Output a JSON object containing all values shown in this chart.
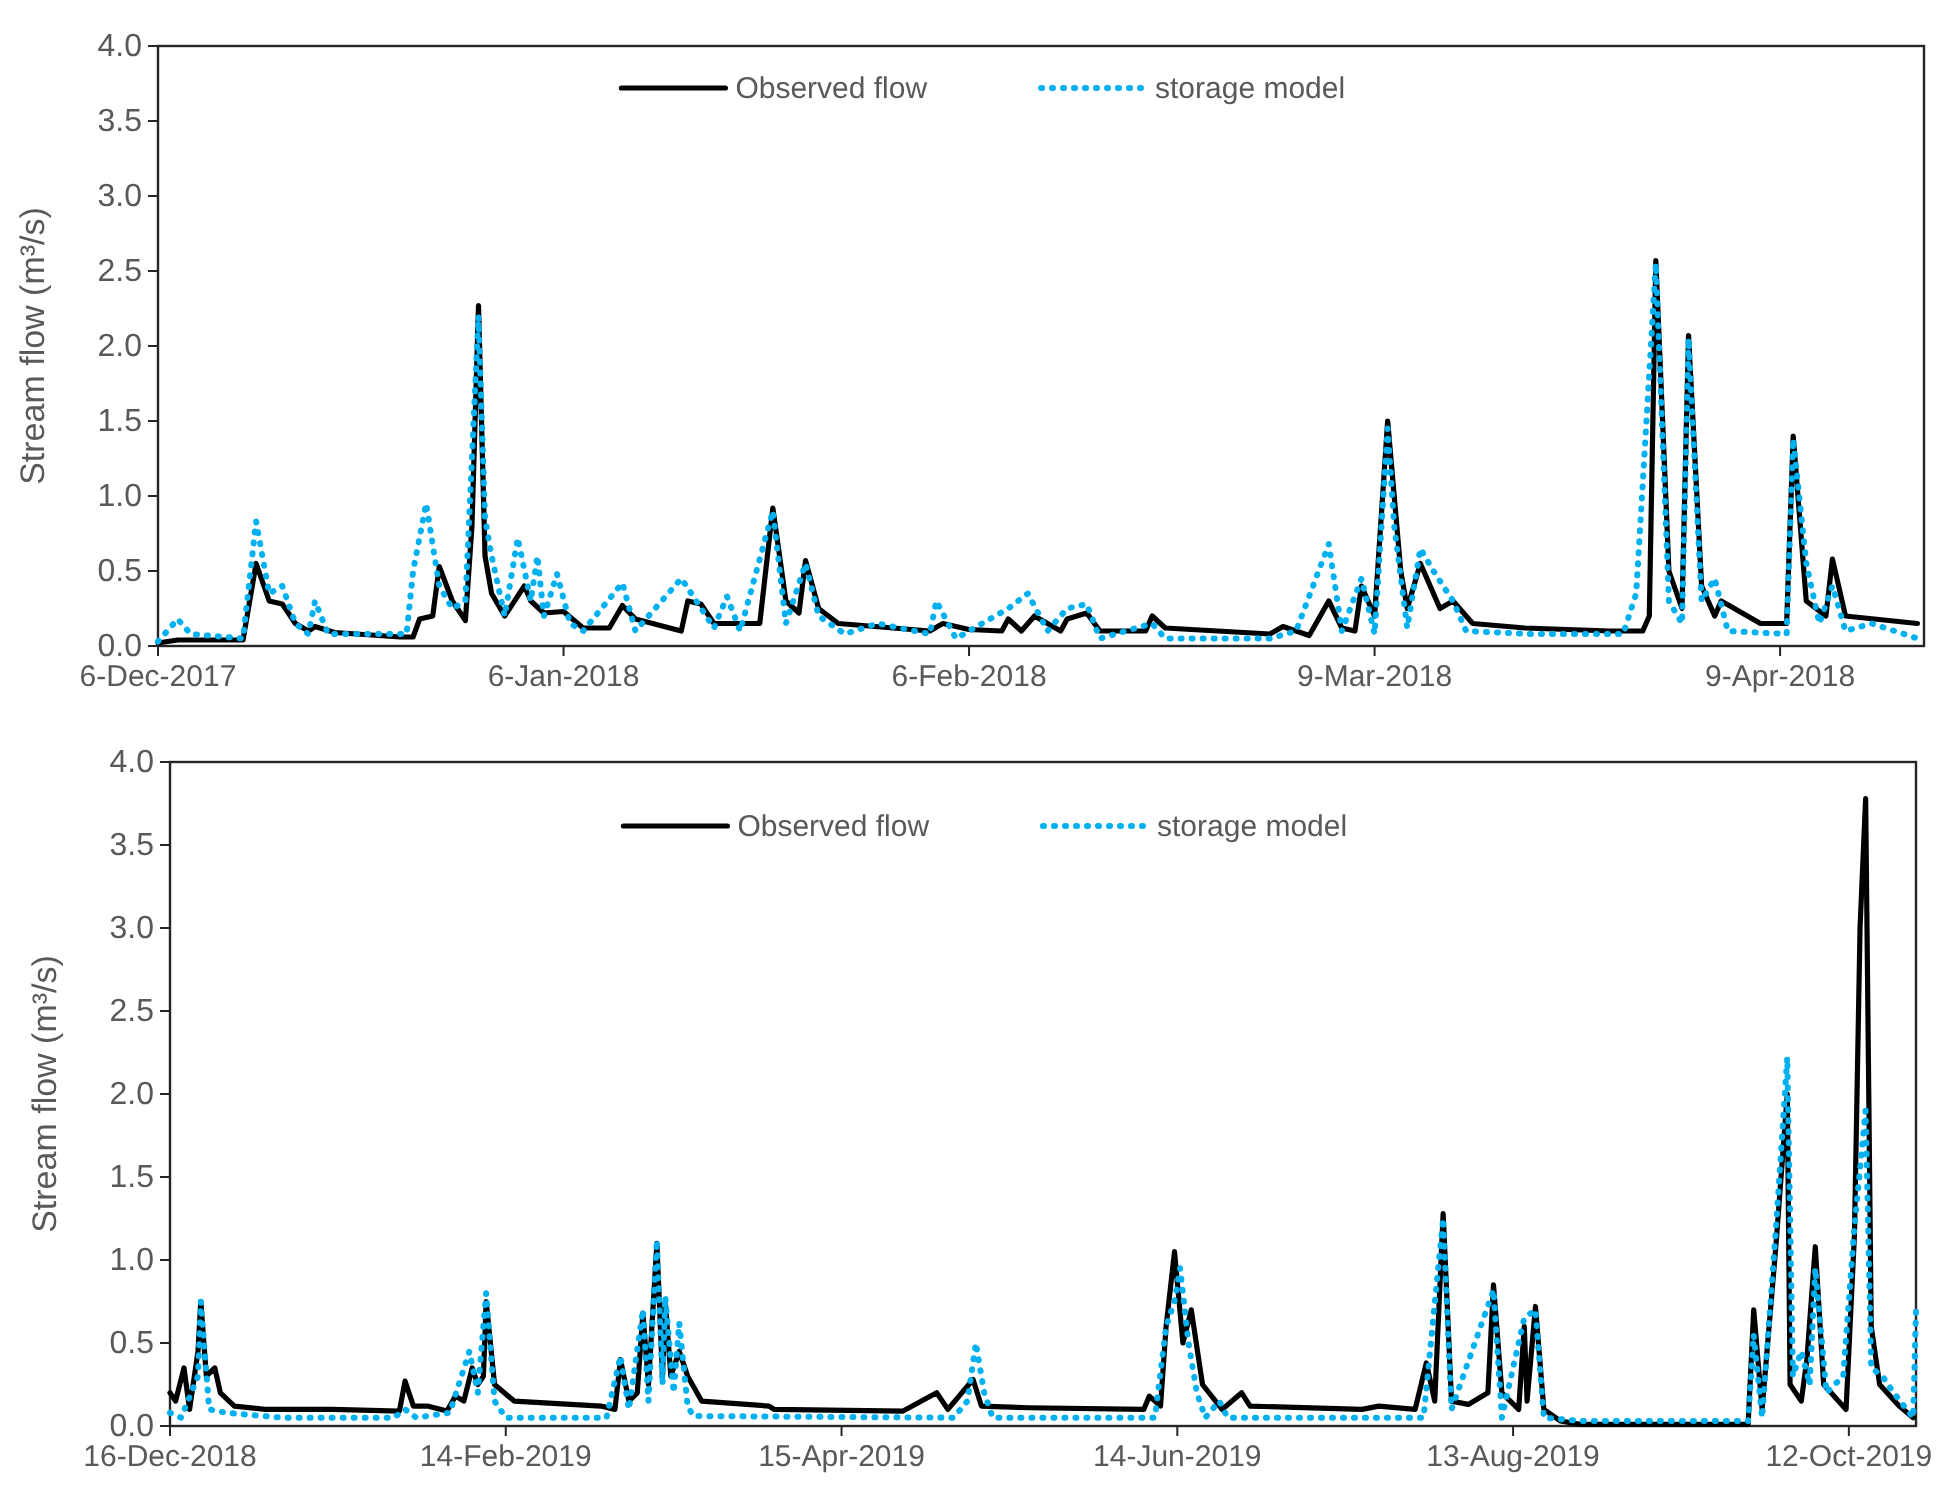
{
  "chart_data": [
    {
      "type": "line",
      "ylabel": "Stream flow (m³/s)",
      "legend": "top",
      "xlim": [
        "2017-12-06",
        "2018-04-20"
      ],
      "ylim": [
        0,
        4
      ],
      "xticks": [
        {
          "value": "2017-12-06",
          "label": "6-Dec-2017"
        },
        {
          "value": "2018-01-06",
          "label": "6-Jan-2018"
        },
        {
          "value": "2018-02-06",
          "label": "6-Feb-2018"
        },
        {
          "value": "2018-03-09",
          "label": "9-Mar-2018"
        },
        {
          "value": "2018-04-09",
          "label": "9-Apr-2018"
        }
      ],
      "yticks": [
        {
          "value": 0,
          "label": "0.0"
        },
        0.5,
        {
          "value": 1,
          "label": "1.0"
        },
        1.5,
        {
          "value": 2,
          "label": "2.0"
        },
        2.5,
        {
          "value": 3,
          "label": "3.0"
        },
        3.5,
        {
          "value": 4,
          "label": "4.0"
        }
      ],
      "series": [
        {
          "name": "Observed flow",
          "color": "#000000",
          "line_style": "solid",
          "x": [
            "2017-12-06",
            "2017-12-07T12:00",
            "2017-12-12T12:00",
            "2017-12-13T12:00",
            "2017-12-14T12:00",
            "2017-12-15T12:00",
            "2017-12-16T12:00",
            "2017-12-17T12:00",
            "2017-12-18",
            "2017-12-19T12:00",
            "2017-12-24T12:00",
            "2017-12-25T12:00",
            "2017-12-26",
            "2017-12-27",
            "2017-12-27T12:00",
            "2017-12-28T12:00",
            "2017-12-29T12:00",
            "2017-12-30",
            "2017-12-30T12:00",
            "2017-12-31",
            "2017-12-31T12:00",
            "2018-01-01T12:00",
            "2018-01-03",
            "2018-01-03T12:00",
            "2018-01-04T12:00",
            "2018-01-06",
            "2018-01-07T12:00",
            "2018-01-09T12:00",
            "2018-01-10T12:00",
            "2018-01-11T12:00",
            "2018-01-15",
            "2018-01-15T12:00",
            "2018-01-16T12:00",
            "2018-01-17T12:00",
            "2018-01-21",
            "2018-01-22",
            "2018-01-23",
            "2018-01-24",
            "2018-01-24T12:00",
            "2018-01-25T12:00",
            "2018-01-27",
            "2018-02-03",
            "2018-02-04",
            "2018-02-06",
            "2018-02-08T12:00",
            "2018-02-09",
            "2018-02-10",
            "2018-02-11",
            "2018-02-13",
            "2018-02-13T12:00",
            "2018-02-15",
            "2018-02-16",
            "2018-02-19T12:00",
            "2018-02-20",
            "2018-02-21",
            "2018-03-01",
            "2018-03-02",
            "2018-03-04",
            "2018-03-05T12:00",
            "2018-03-06T12:00",
            "2018-03-07T12:00",
            "2018-03-08",
            "2018-03-09",
            "2018-03-10",
            "2018-03-11",
            "2018-03-11T12:00",
            "2018-03-12T12:00",
            "2018-03-14",
            "2018-03-15",
            "2018-03-16T12:00",
            "2018-03-20T12:00",
            "2018-03-27",
            "2018-03-29T12:00",
            "2018-03-30",
            "2018-03-30T12:00",
            "2018-03-31T12:00",
            "2018-04-01T12:00",
            "2018-04-02",
            "2018-04-03",
            "2018-04-04",
            "2018-04-04T12:00",
            "2018-04-07T12:00",
            "2018-04-09T12:00",
            "2018-04-10",
            "2018-04-11",
            "2018-04-12T12:00",
            "2018-04-13",
            "2018-04-14",
            "2018-04-19T12:00"
          ],
          "values": [
            0.02,
            0.04,
            0.04,
            0.55,
            0.3,
            0.28,
            0.15,
            0.1,
            0.13,
            0.09,
            0.06,
            0.06,
            0.18,
            0.2,
            0.53,
            0.3,
            0.17,
            0.8,
            2.27,
            0.6,
            0.35,
            0.2,
            0.4,
            0.3,
            0.22,
            0.23,
            0.12,
            0.12,
            0.27,
            0.18,
            0.1,
            0.3,
            0.28,
            0.15,
            0.15,
            0.92,
            0.3,
            0.22,
            0.57,
            0.25,
            0.15,
            0.1,
            0.15,
            0.11,
            0.1,
            0.18,
            0.1,
            0.2,
            0.1,
            0.18,
            0.22,
            0.1,
            0.1,
            0.2,
            0.12,
            0.08,
            0.13,
            0.07,
            0.3,
            0.12,
            0.1,
            0.4,
            0.2,
            1.5,
            0.5,
            0.25,
            0.55,
            0.25,
            0.3,
            0.15,
            0.12,
            0.1,
            0.1,
            0.2,
            2.57,
            0.5,
            0.25,
            2.07,
            0.4,
            0.2,
            0.3,
            0.15,
            0.15,
            1.4,
            0.3,
            0.2,
            0.58,
            0.2,
            0.15
          ]
        },
        {
          "name": "storage model",
          "color": "#00b0f0",
          "line_style": "dotted",
          "x": [
            "2017-12-06",
            "2017-12-07T12:00",
            "2017-12-08T12:00",
            "2017-12-12T12:00",
            "2017-12-13T12:00",
            "2017-12-14T12:00",
            "2017-12-15T12:00",
            "2017-12-16T12:00",
            "2017-12-17T12:00",
            "2017-12-18",
            "2017-12-19",
            "2017-12-25",
            "2017-12-25T12:00",
            "2017-12-26T12:00",
            "2017-12-27T12:00",
            "2017-12-28T12:00",
            "2017-12-29T12:00",
            "2017-12-30T12:00",
            "2017-12-31",
            "2017-12-31T12:00",
            "2018-01-01T12:00",
            "2018-01-02T12:00",
            "2018-01-03T12:00",
            "2018-01-04",
            "2018-01-04T12:00",
            "2018-01-05T12:00",
            "2018-01-06T12:00",
            "2018-01-07T12:00",
            "2018-01-10T12:00",
            "2018-01-11T12:00",
            "2018-01-15",
            "2018-01-16",
            "2018-01-17T12:00",
            "2018-01-18T12:00",
            "2018-01-19T12:00",
            "2018-01-22",
            "2018-01-23",
            "2018-01-24T12:00",
            "2018-01-25T12:00",
            "2018-01-27T12:00",
            "2018-01-30",
            "2018-02-03",
            "2018-02-03T12:00",
            "2018-02-05",
            "2018-02-09",
            "2018-02-10T12:00",
            "2018-02-12",
            "2018-02-13T12:00",
            "2018-02-15",
            "2018-02-16",
            "2018-02-20",
            "2018-02-21",
            "2018-03-01",
            "2018-03-03",
            "2018-03-05T12:00",
            "2018-03-06T12:00",
            "2018-03-08",
            "2018-03-09",
            "2018-03-10",
            "2018-03-10T12:00",
            "2018-03-11T12:00",
            "2018-03-12T12:00",
            "2018-03-13T12:00",
            "2018-03-15",
            "2018-03-16",
            "2018-03-21",
            "2018-03-28",
            "2018-03-29",
            "2018-03-30T12:00",
            "2018-03-31T12:00",
            "2018-04-01T12:00",
            "2018-04-02",
            "2018-04-03",
            "2018-04-04",
            "2018-04-05",
            "2018-04-09T12:00",
            "2018-04-10",
            "2018-04-11",
            "2018-04-12",
            "2018-04-13",
            "2018-04-14",
            "2018-04-16",
            "2018-04-19T12:00"
          ],
          "values": [
            0.03,
            0.18,
            0.08,
            0.05,
            0.83,
            0.35,
            0.4,
            0.15,
            0.08,
            0.3,
            0.08,
            0.08,
            0.5,
            0.95,
            0.4,
            0.25,
            0.3,
            2.2,
            0.85,
            0.6,
            0.2,
            0.72,
            0.3,
            0.6,
            0.2,
            0.48,
            0.15,
            0.1,
            0.42,
            0.1,
            0.45,
            0.32,
            0.12,
            0.33,
            0.1,
            0.9,
            0.15,
            0.55,
            0.2,
            0.08,
            0.15,
            0.08,
            0.3,
            0.05,
            0.25,
            0.35,
            0.1,
            0.25,
            0.28,
            0.05,
            0.15,
            0.05,
            0.05,
            0.1,
            0.68,
            0.1,
            0.45,
            0.08,
            1.45,
            0.8,
            0.12,
            0.65,
            0.5,
            0.3,
            0.1,
            0.08,
            0.08,
            0.35,
            2.55,
            0.3,
            0.15,
            2.05,
            0.3,
            0.45,
            0.1,
            0.08,
            1.38,
            0.55,
            0.15,
            0.4,
            0.1,
            0.15,
            0.05
          ]
        }
      ]
    },
    {
      "type": "line",
      "ylabel": "Stream flow (m³/s)",
      "legend": "top",
      "xlim": [
        "2018-12-16",
        "2019-10-24"
      ],
      "ylim": [
        0,
        4
      ],
      "xticks": [
        {
          "value": "2018-12-16",
          "label": "16-Dec-2018"
        },
        {
          "value": "2019-02-14",
          "label": "14-Feb-2019"
        },
        {
          "value": "2019-04-15",
          "label": "15-Apr-2019"
        },
        {
          "value": "2019-06-14",
          "label": "14-Jun-2019"
        },
        {
          "value": "2019-08-13",
          "label": "13-Aug-2019"
        },
        {
          "value": "2019-10-12",
          "label": "12-Oct-2019"
        }
      ],
      "yticks": [
        {
          "value": 0,
          "label": "0.0"
        },
        0.5,
        {
          "value": 1,
          "label": "1.0"
        },
        1.5,
        {
          "value": 2,
          "label": "2.0"
        },
        2.5,
        {
          "value": 3,
          "label": "3.0"
        },
        3.5,
        {
          "value": 4,
          "label": "4.0"
        }
      ],
      "series": [
        {
          "name": "Observed flow",
          "color": "#000000",
          "line_style": "solid",
          "x": [
            "2018-12-16",
            "2018-12-17",
            "2018-12-18T12:00",
            "2018-12-19T12:00",
            "2018-12-21",
            "2018-12-21T12:00",
            "2018-12-22T12:00",
            "2018-12-24",
            "2018-12-25",
            "2018-12-27T12:00",
            "2019-01-02",
            "2019-01-14",
            "2019-01-26",
            "2019-01-27",
            "2019-01-28T12:00",
            "2019-01-31",
            "2019-02-03T12:00",
            "2019-02-05",
            "2019-02-06T12:00",
            "2019-02-08",
            "2019-02-09",
            "2019-02-10",
            "2019-02-10T12:00",
            "2019-02-12",
            "2019-02-15T12:00",
            "2019-03-03",
            "2019-03-05T12:00",
            "2019-03-06T12:00",
            "2019-03-08",
            "2019-03-09T12:00",
            "2019-03-10T12:00",
            "2019-03-11T12:00",
            "2019-03-13",
            "2019-03-14",
            "2019-03-14T12:00",
            "2019-03-15T12:00",
            "2019-03-17",
            "2019-03-18T12:00",
            "2019-03-21",
            "2019-04-02",
            "2019-04-03",
            "2019-04-26",
            "2019-05-02",
            "2019-05-04",
            "2019-05-08T12:00",
            "2019-05-10",
            "2019-05-18T12:00",
            "2019-06-08",
            "2019-06-09",
            "2019-06-11",
            "2019-06-12",
            "2019-06-13T12:00",
            "2019-06-15",
            "2019-06-16T12:00",
            "2019-06-18T12:00",
            "2019-06-22",
            "2019-06-25T12:00",
            "2019-06-27",
            "2019-07-17",
            "2019-07-20",
            "2019-07-26T12:00",
            "2019-07-28T12:00",
            "2019-07-30",
            "2019-07-31T12:00",
            "2019-08-02",
            "2019-08-05",
            "2019-08-08T12:00",
            "2019-08-09T12:00",
            "2019-08-11",
            "2019-08-14",
            "2019-08-15",
            "2019-08-15T12:00",
            "2019-08-17",
            "2019-08-18T12:00",
            "2019-08-21T12:00",
            "2019-08-25",
            "2019-09-24",
            "2019-09-25",
            "2019-09-26T12:00",
            "2019-09-29",
            "2019-10-01",
            "2019-10-01T12:00",
            "2019-10-03T12:00",
            "2019-10-04T12:00",
            "2019-10-06",
            "2019-10-07T12:00",
            "2019-10-11T12:00",
            "2019-10-13",
            "2019-10-14",
            "2019-10-15",
            "2019-10-16",
            "2019-10-17T12:00",
            "2019-10-21",
            "2019-10-23T12:00"
          ],
          "values": [
            0.2,
            0.15,
            0.35,
            0.1,
            0.45,
            0.75,
            0.3,
            0.35,
            0.2,
            0.12,
            0.1,
            0.1,
            0.09,
            0.27,
            0.12,
            0.12,
            0.09,
            0.18,
            0.15,
            0.35,
            0.25,
            0.3,
            0.75,
            0.25,
            0.15,
            0.12,
            0.1,
            0.4,
            0.15,
            0.2,
            0.68,
            0.25,
            1.1,
            0.3,
            0.75,
            0.3,
            0.45,
            0.3,
            0.15,
            0.12,
            0.1,
            0.09,
            0.2,
            0.1,
            0.28,
            0.12,
            0.11,
            0.1,
            0.18,
            0.12,
            0.6,
            1.05,
            0.5,
            0.7,
            0.25,
            0.1,
            0.2,
            0.12,
            0.1,
            0.12,
            0.1,
            0.38,
            0.15,
            1.28,
            0.15,
            0.13,
            0.2,
            0.85,
            0.2,
            0.1,
            0.6,
            0.15,
            0.72,
            0.1,
            0.03,
            0.01,
            0.01,
            0.7,
            0.1,
            1.1,
            2.0,
            0.25,
            0.15,
            0.4,
            1.08,
            0.25,
            0.1,
            1.15,
            3.0,
            3.78,
            0.6,
            0.25,
            0.12,
            0.05
          ]
        },
        {
          "name": "storage model",
          "color": "#00b0f0",
          "line_style": "dotted",
          "x": [
            "2018-12-16",
            "2018-12-18",
            "2018-12-21",
            "2018-12-21T12:00",
            "2018-12-23",
            "2018-12-26",
            "2019-01-05",
            "2019-01-25",
            "2019-01-27",
            "2019-01-29",
            "2019-02-04",
            "2019-02-07T12:00",
            "2019-02-09",
            "2019-02-10T12:00",
            "2019-02-12",
            "2019-02-14",
            "2019-03-04",
            "2019-03-06T12:00",
            "2019-03-08",
            "2019-03-10T12:00",
            "2019-03-11T12:00",
            "2019-03-13",
            "2019-03-14",
            "2019-03-14T12:00",
            "2019-03-16",
            "2019-03-17",
            "2019-03-18T12:00",
            "2019-03-19T12:00",
            "2019-05-05",
            "2019-05-07T12:00",
            "2019-05-09",
            "2019-05-10T12:00",
            "2019-05-12",
            "2019-06-10",
            "2019-06-12",
            "2019-06-13T12:00",
            "2019-06-14T12:00",
            "2019-06-16",
            "2019-06-17T12:00",
            "2019-06-19",
            "2019-06-21T12:00",
            "2019-06-23",
            "2019-07-28",
            "2019-07-31T12:00",
            "2019-08-02",
            "2019-08-09T12:00",
            "2019-08-11",
            "2019-08-15",
            "2019-08-17",
            "2019-08-18T12:00",
            "2019-08-25",
            "2019-09-24",
            "2019-09-25",
            "2019-09-26T12:00",
            "2019-09-29",
            "2019-10-01",
            "2019-10-02",
            "2019-10-03T12:00",
            "2019-10-05",
            "2019-10-06",
            "2019-10-08",
            "2019-10-11",
            "2019-10-13",
            "2019-10-15",
            "2019-10-16",
            "2019-10-18",
            "2019-10-20",
            "2019-10-23T12:00",
            "2019-10-24"
          ],
          "values": [
            0.08,
            0.05,
            0.3,
            0.75,
            0.1,
            0.08,
            0.05,
            0.05,
            0.1,
            0.05,
            0.08,
            0.45,
            0.2,
            0.8,
            0.15,
            0.05,
            0.05,
            0.42,
            0.1,
            0.7,
            0.15,
            1.12,
            0.25,
            0.78,
            0.2,
            0.62,
            0.12,
            0.06,
            0.05,
            0.15,
            0.5,
            0.2,
            0.05,
            0.05,
            0.6,
            0.75,
            0.95,
            0.5,
            0.2,
            0.05,
            0.15,
            0.05,
            0.05,
            1.25,
            0.1,
            0.82,
            0.05,
            0.65,
            0.7,
            0.05,
            0.03,
            0.03,
            0.55,
            0.05,
            1.2,
            2.22,
            0.3,
            0.45,
            0.25,
            0.95,
            0.2,
            0.3,
            1.2,
            1.9,
            0.35,
            0.3,
            0.2,
            0.05,
            0.7
          ]
        }
      ]
    }
  ]
}
